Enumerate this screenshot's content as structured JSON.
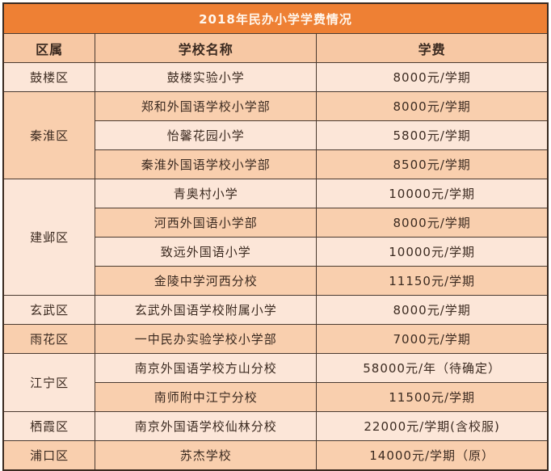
{
  "title": "2018年民办小学学费情况",
  "headers": [
    "区属",
    "学校名称",
    "学费"
  ],
  "groups": [
    {
      "district": "鼓楼区",
      "rows": [
        {
          "school": "鼓楼实验小学",
          "fee": "8000元/学期"
        }
      ]
    },
    {
      "district": "秦淮区",
      "rows": [
        {
          "school": "郑和外国语学校小学部",
          "fee": "8000元/学期"
        },
        {
          "school": "怡馨花园小学",
          "fee": "5800元/学期"
        },
        {
          "school": "秦淮外国语学校小学部",
          "fee": "8500元/学期"
        }
      ]
    },
    {
      "district": "建邺区",
      "rows": [
        {
          "school": "青奥村小学",
          "fee": "10000元/学期"
        },
        {
          "school": "河西外国语小学部",
          "fee": "8000元/学期"
        },
        {
          "school": "致远外国语小学",
          "fee": "10000元/学期"
        },
        {
          "school": "金陵中学河西分校",
          "fee": "11150元/学期"
        }
      ]
    },
    {
      "district": "玄武区",
      "rows": [
        {
          "school": "玄武外国语学校附属小学",
          "fee": "8000元/学期"
        }
      ]
    },
    {
      "district": "雨花区",
      "rows": [
        {
          "school": "一中民办实验学校小学部",
          "fee": "7000元/学期"
        }
      ]
    },
    {
      "district": "江宁区",
      "rows": [
        {
          "school": "南京外国语学校方山分校",
          "fee": "58000元/年（待确定）"
        },
        {
          "school": "南师附中江宁分校",
          "fee": "11500元/学期"
        }
      ]
    },
    {
      "district": "栖霞区",
      "rows": [
        {
          "school": "南京外国语学校仙林分校",
          "fee": "22000元/学期(含校服)"
        }
      ]
    },
    {
      "district": "浦口区",
      "rows": [
        {
          "school": "苏杰学校",
          "fee": "14000元/学期（原）"
        }
      ]
    }
  ],
  "colors": {
    "title_bg": "#ee8034",
    "header_bg": "#f7c8a4",
    "row_light": "#fce6d8",
    "row_dark": "#f9cfae"
  }
}
